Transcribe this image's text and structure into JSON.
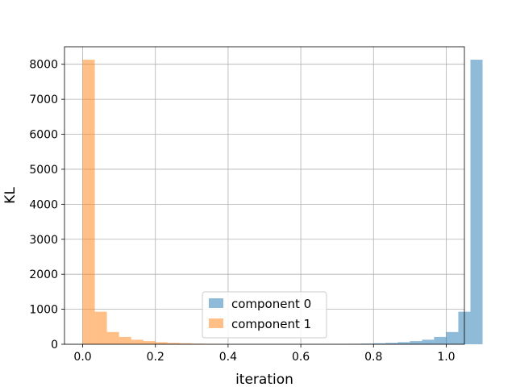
{
  "chart_data": {
    "type": "histogram",
    "xlabel": "iteration",
    "ylabel": "KL",
    "xlim": [
      -0.05,
      1.05
    ],
    "ylim": [
      0,
      8500
    ],
    "xticks": [
      "0.0",
      "0.2",
      "0.4",
      "0.6",
      "0.8",
      "1.0"
    ],
    "yticks": [
      "0",
      "1000",
      "2000",
      "3000",
      "4000",
      "5000",
      "6000",
      "7000",
      "8000"
    ],
    "grid": true,
    "legend_position": "lower center",
    "bin_width": 0.03333,
    "series": [
      {
        "name": "component 0",
        "color": "#1f77b4",
        "opacity": 0.5,
        "bin_start": 0.6333,
        "values": [
          2,
          5,
          8,
          12,
          18,
          28,
          40,
          60,
          90,
          130,
          210,
          350,
          930,
          8130
        ]
      },
      {
        "name": "component 1",
        "color": "#ff7f0e",
        "opacity": 0.5,
        "bin_start": 0.0,
        "values": [
          8130,
          930,
          350,
          210,
          130,
          90,
          60,
          40,
          28,
          18,
          12,
          8,
          5,
          2
        ]
      }
    ]
  }
}
